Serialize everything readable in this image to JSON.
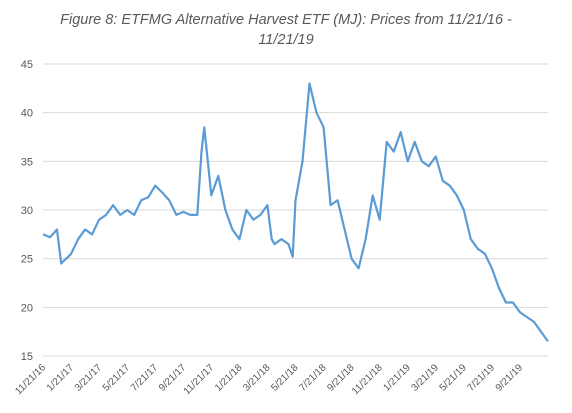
{
  "chart_data": {
    "type": "line",
    "title": "Figure 8: ETFMG Alternative Harvest ETF (MJ): Prices from 11/21/16 -",
    "title_line2": "11/21/19",
    "xlabel": "",
    "ylabel": "",
    "ylim": [
      15,
      45
    ],
    "yticks": [
      15,
      20,
      25,
      30,
      35,
      40,
      45
    ],
    "x_tick_labels": [
      "11/21/16",
      "1/21/17",
      "3/21/17",
      "5/21/17",
      "7/21/17",
      "9/21/17",
      "11/21/17",
      "1/21/18",
      "3/21/18",
      "5/21/18",
      "7/21/18",
      "9/21/18",
      "11/21/18",
      "1/21/19",
      "3/21/19",
      "5/21/19",
      "7/21/19",
      "9/21/19"
    ],
    "grid": "horizontal",
    "legend": "none",
    "line_color": "#5b9bd5",
    "x": [
      0,
      0.5,
      1,
      1.3,
      1.5,
      1.8,
      2,
      2.5,
      3,
      3.5,
      4,
      4.5,
      5,
      5.5,
      6,
      6.5,
      7,
      7.5,
      8,
      8.5,
      9,
      9.5,
      10,
      10.5,
      11,
      11.3,
      11.5,
      12,
      12.5,
      13,
      13.5,
      14,
      14.5,
      15,
      15.5,
      16,
      16.3,
      16.5,
      17,
      17.5,
      17.8,
      18,
      18.5,
      19,
      19.5,
      20,
      20.5,
      21,
      21.5,
      22,
      22.5,
      23,
      23.5,
      24,
      24.5,
      25,
      25.5,
      26,
      26.5,
      27,
      27.5,
      28,
      28.5,
      29,
      29.5,
      30,
      30.5,
      31,
      31.5,
      32,
      32.5,
      33,
      33.5,
      34,
      34.5,
      35,
      35.5,
      36
    ],
    "values": [
      27.5,
      27.2,
      28,
      24.5,
      24.8,
      25.2,
      25.5,
      27,
      28,
      27.5,
      29,
      29.5,
      30.5,
      29.5,
      30,
      29.5,
      31,
      31.3,
      32.5,
      31.8,
      31,
      29.5,
      29.8,
      29.5,
      29.5,
      36,
      38.5,
      31.5,
      33.5,
      30,
      28,
      27,
      30,
      29,
      29.5,
      30.5,
      27,
      26.5,
      27,
      26.5,
      25.2,
      31,
      35,
      43,
      40,
      38.5,
      30.5,
      31,
      28,
      25,
      24,
      27,
      31.5,
      29,
      37,
      36,
      38,
      35,
      37,
      35,
      34.5,
      35.5,
      33,
      32.5,
      31.5,
      30,
      27,
      26,
      25.5,
      24,
      22,
      20.5,
      20.5,
      19.5,
      19,
      18.5,
      17.5,
      16.5
    ]
  }
}
